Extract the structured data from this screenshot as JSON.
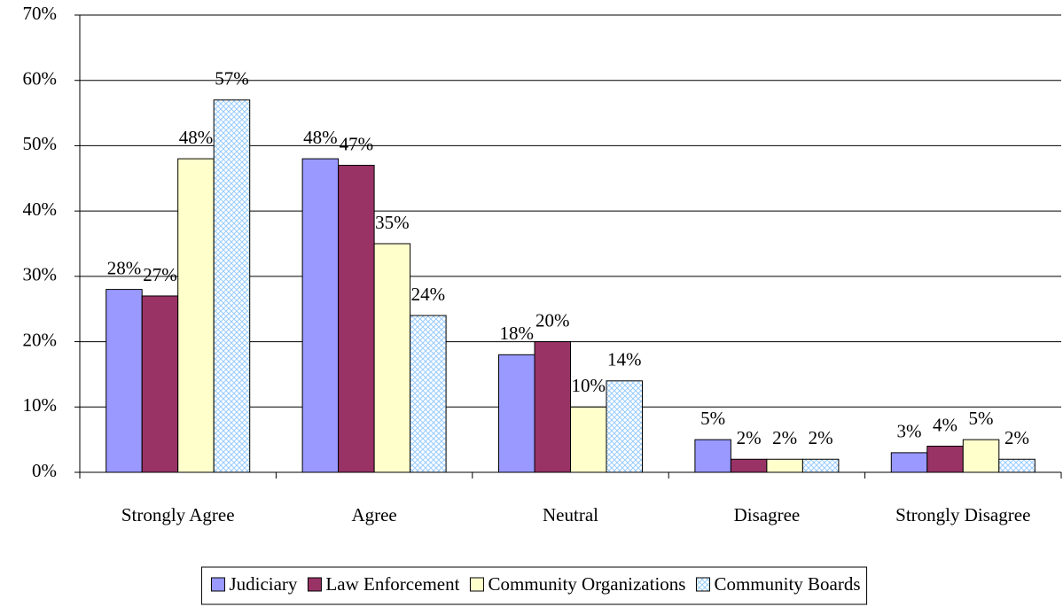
{
  "chart_data": {
    "type": "bar",
    "categories": [
      "Strongly Agree",
      "Agree",
      "Neutral",
      "Disagree",
      "Strongly Disagree"
    ],
    "series": [
      {
        "name": "Judiciary",
        "color": "#9999ff",
        "values": [
          28,
          48,
          18,
          5,
          3
        ],
        "value_labels": [
          "28%",
          "48%",
          "18%",
          "5%",
          "3%"
        ]
      },
      {
        "name": "Law Enforcement",
        "color": "#993366",
        "values": [
          27,
          47,
          20,
          2,
          4
        ],
        "value_labels": [
          "27%",
          "47%",
          "20%",
          "2%",
          "4%"
        ]
      },
      {
        "name": "Community Organizations",
        "color": "#ffffcc",
        "values": [
          48,
          35,
          10,
          2,
          5
        ],
        "value_labels": [
          "48%",
          "35%",
          "10%",
          "2%",
          "5%"
        ]
      },
      {
        "name": "Community Boards",
        "color": "#cce6ff",
        "pattern": "crosshatch",
        "values": [
          57,
          24,
          14,
          2,
          2
        ],
        "value_labels": [
          "57%",
          "24%",
          "14%",
          "2%",
          "2%"
        ]
      }
    ],
    "ylim": [
      0,
      70
    ],
    "yticks": [
      {
        "value": 0,
        "label": "0%"
      },
      {
        "value": 10,
        "label": "10%"
      },
      {
        "value": 20,
        "label": "20%"
      },
      {
        "value": 30,
        "label": "30%"
      },
      {
        "value": 40,
        "label": "40%"
      },
      {
        "value": 50,
        "label": "50%"
      },
      {
        "value": 60,
        "label": "60%"
      },
      {
        "value": 70,
        "label": "70%"
      }
    ],
    "grid": true,
    "legend": "bottom"
  }
}
